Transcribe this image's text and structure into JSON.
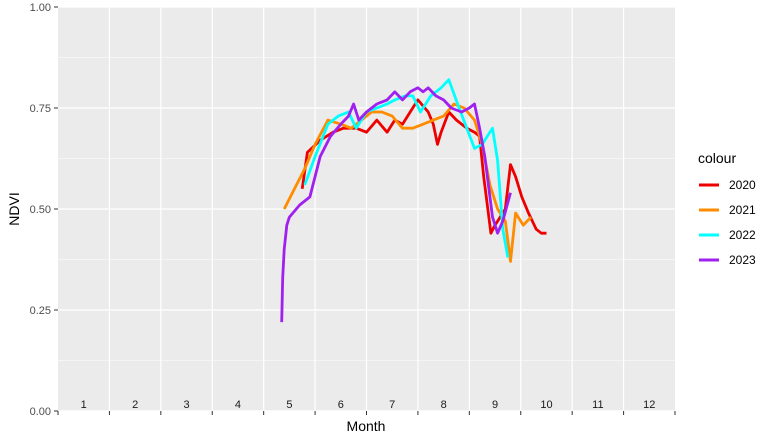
{
  "chart_data": {
    "type": "line",
    "xlabel": "Month",
    "ylabel": "NDVI",
    "ylim": [
      0,
      1
    ],
    "xlim": [
      0.5,
      12.5
    ],
    "yticks": [
      "0.00",
      "0.25",
      "0.50",
      "0.75",
      "1.00"
    ],
    "month_labels": [
      "1",
      "2",
      "3",
      "4",
      "5",
      "6",
      "7",
      "8",
      "9",
      "10",
      "11",
      "12"
    ],
    "grid": true,
    "legend": {
      "title": "colour",
      "placement": "right"
    },
    "series": [
      {
        "name": "2020",
        "color": "#ee0000",
        "x": [
          5.25,
          5.35,
          5.6,
          5.85,
          6.05,
          6.3,
          6.5,
          6.7,
          6.9,
          7.05,
          7.2,
          7.35,
          7.5,
          7.7,
          7.8,
          7.88,
          7.95,
          8.1,
          8.25,
          8.45,
          8.6,
          8.7,
          8.78,
          8.92,
          9.0,
          9.1,
          9.2,
          9.3,
          9.4,
          9.52,
          9.65,
          9.8,
          9.9,
          10.0
        ],
        "y": [
          0.55,
          0.64,
          0.67,
          0.69,
          0.7,
          0.7,
          0.69,
          0.72,
          0.69,
          0.72,
          0.71,
          0.74,
          0.77,
          0.74,
          0.71,
          0.66,
          0.69,
          0.74,
          0.72,
          0.7,
          0.69,
          0.68,
          0.58,
          0.44,
          0.46,
          0.48,
          0.5,
          0.61,
          0.58,
          0.53,
          0.49,
          0.45,
          0.44,
          0.44
        ]
      },
      {
        "name": "2021",
        "color": "#ff8c00",
        "x": [
          4.9,
          5.1,
          5.3,
          5.5,
          5.75,
          6.0,
          6.2,
          6.4,
          6.6,
          6.8,
          7.0,
          7.2,
          7.4,
          7.6,
          7.8,
          8.0,
          8.2,
          8.4,
          8.6,
          8.75,
          8.9,
          9.05,
          9.2,
          9.3,
          9.4,
          9.55,
          9.7
        ],
        "y": [
          0.5,
          0.55,
          0.6,
          0.66,
          0.72,
          0.71,
          0.7,
          0.72,
          0.74,
          0.74,
          0.73,
          0.7,
          0.7,
          0.71,
          0.72,
          0.73,
          0.76,
          0.75,
          0.72,
          0.66,
          0.56,
          0.5,
          0.47,
          0.37,
          0.49,
          0.46,
          0.48
        ]
      },
      {
        "name": "2022",
        "color": "#00ffff",
        "x": [
          5.3,
          5.5,
          5.75,
          5.95,
          6.15,
          6.3,
          6.5,
          6.7,
          6.9,
          7.05,
          7.25,
          7.4,
          7.55,
          7.75,
          7.95,
          8.1,
          8.3,
          8.45,
          8.6,
          8.75,
          8.85,
          8.95,
          9.05,
          9.15,
          9.25
        ],
        "y": [
          0.56,
          0.63,
          0.71,
          0.73,
          0.74,
          0.7,
          0.74,
          0.75,
          0.76,
          0.77,
          0.78,
          0.78,
          0.74,
          0.78,
          0.8,
          0.82,
          0.75,
          0.7,
          0.65,
          0.66,
          0.68,
          0.7,
          0.62,
          0.45,
          0.38
        ]
      },
      {
        "name": "2023",
        "color": "#a020f0",
        "x": [
          4.85,
          4.87,
          4.9,
          4.95,
          5.0,
          5.2,
          5.4,
          5.6,
          5.8,
          6.0,
          6.15,
          6.25,
          6.35,
          6.5,
          6.7,
          6.9,
          7.05,
          7.2,
          7.35,
          7.5,
          7.6,
          7.7,
          7.85,
          8.0,
          8.15,
          8.35,
          8.5,
          8.6,
          8.7,
          8.8,
          8.95,
          9.05,
          9.15,
          9.3
        ],
        "y": [
          0.22,
          0.33,
          0.4,
          0.46,
          0.48,
          0.51,
          0.53,
          0.63,
          0.68,
          0.71,
          0.73,
          0.76,
          0.72,
          0.74,
          0.76,
          0.77,
          0.79,
          0.77,
          0.79,
          0.8,
          0.79,
          0.8,
          0.78,
          0.77,
          0.75,
          0.74,
          0.75,
          0.76,
          0.7,
          0.63,
          0.48,
          0.44,
          0.47,
          0.54
        ]
      }
    ]
  }
}
